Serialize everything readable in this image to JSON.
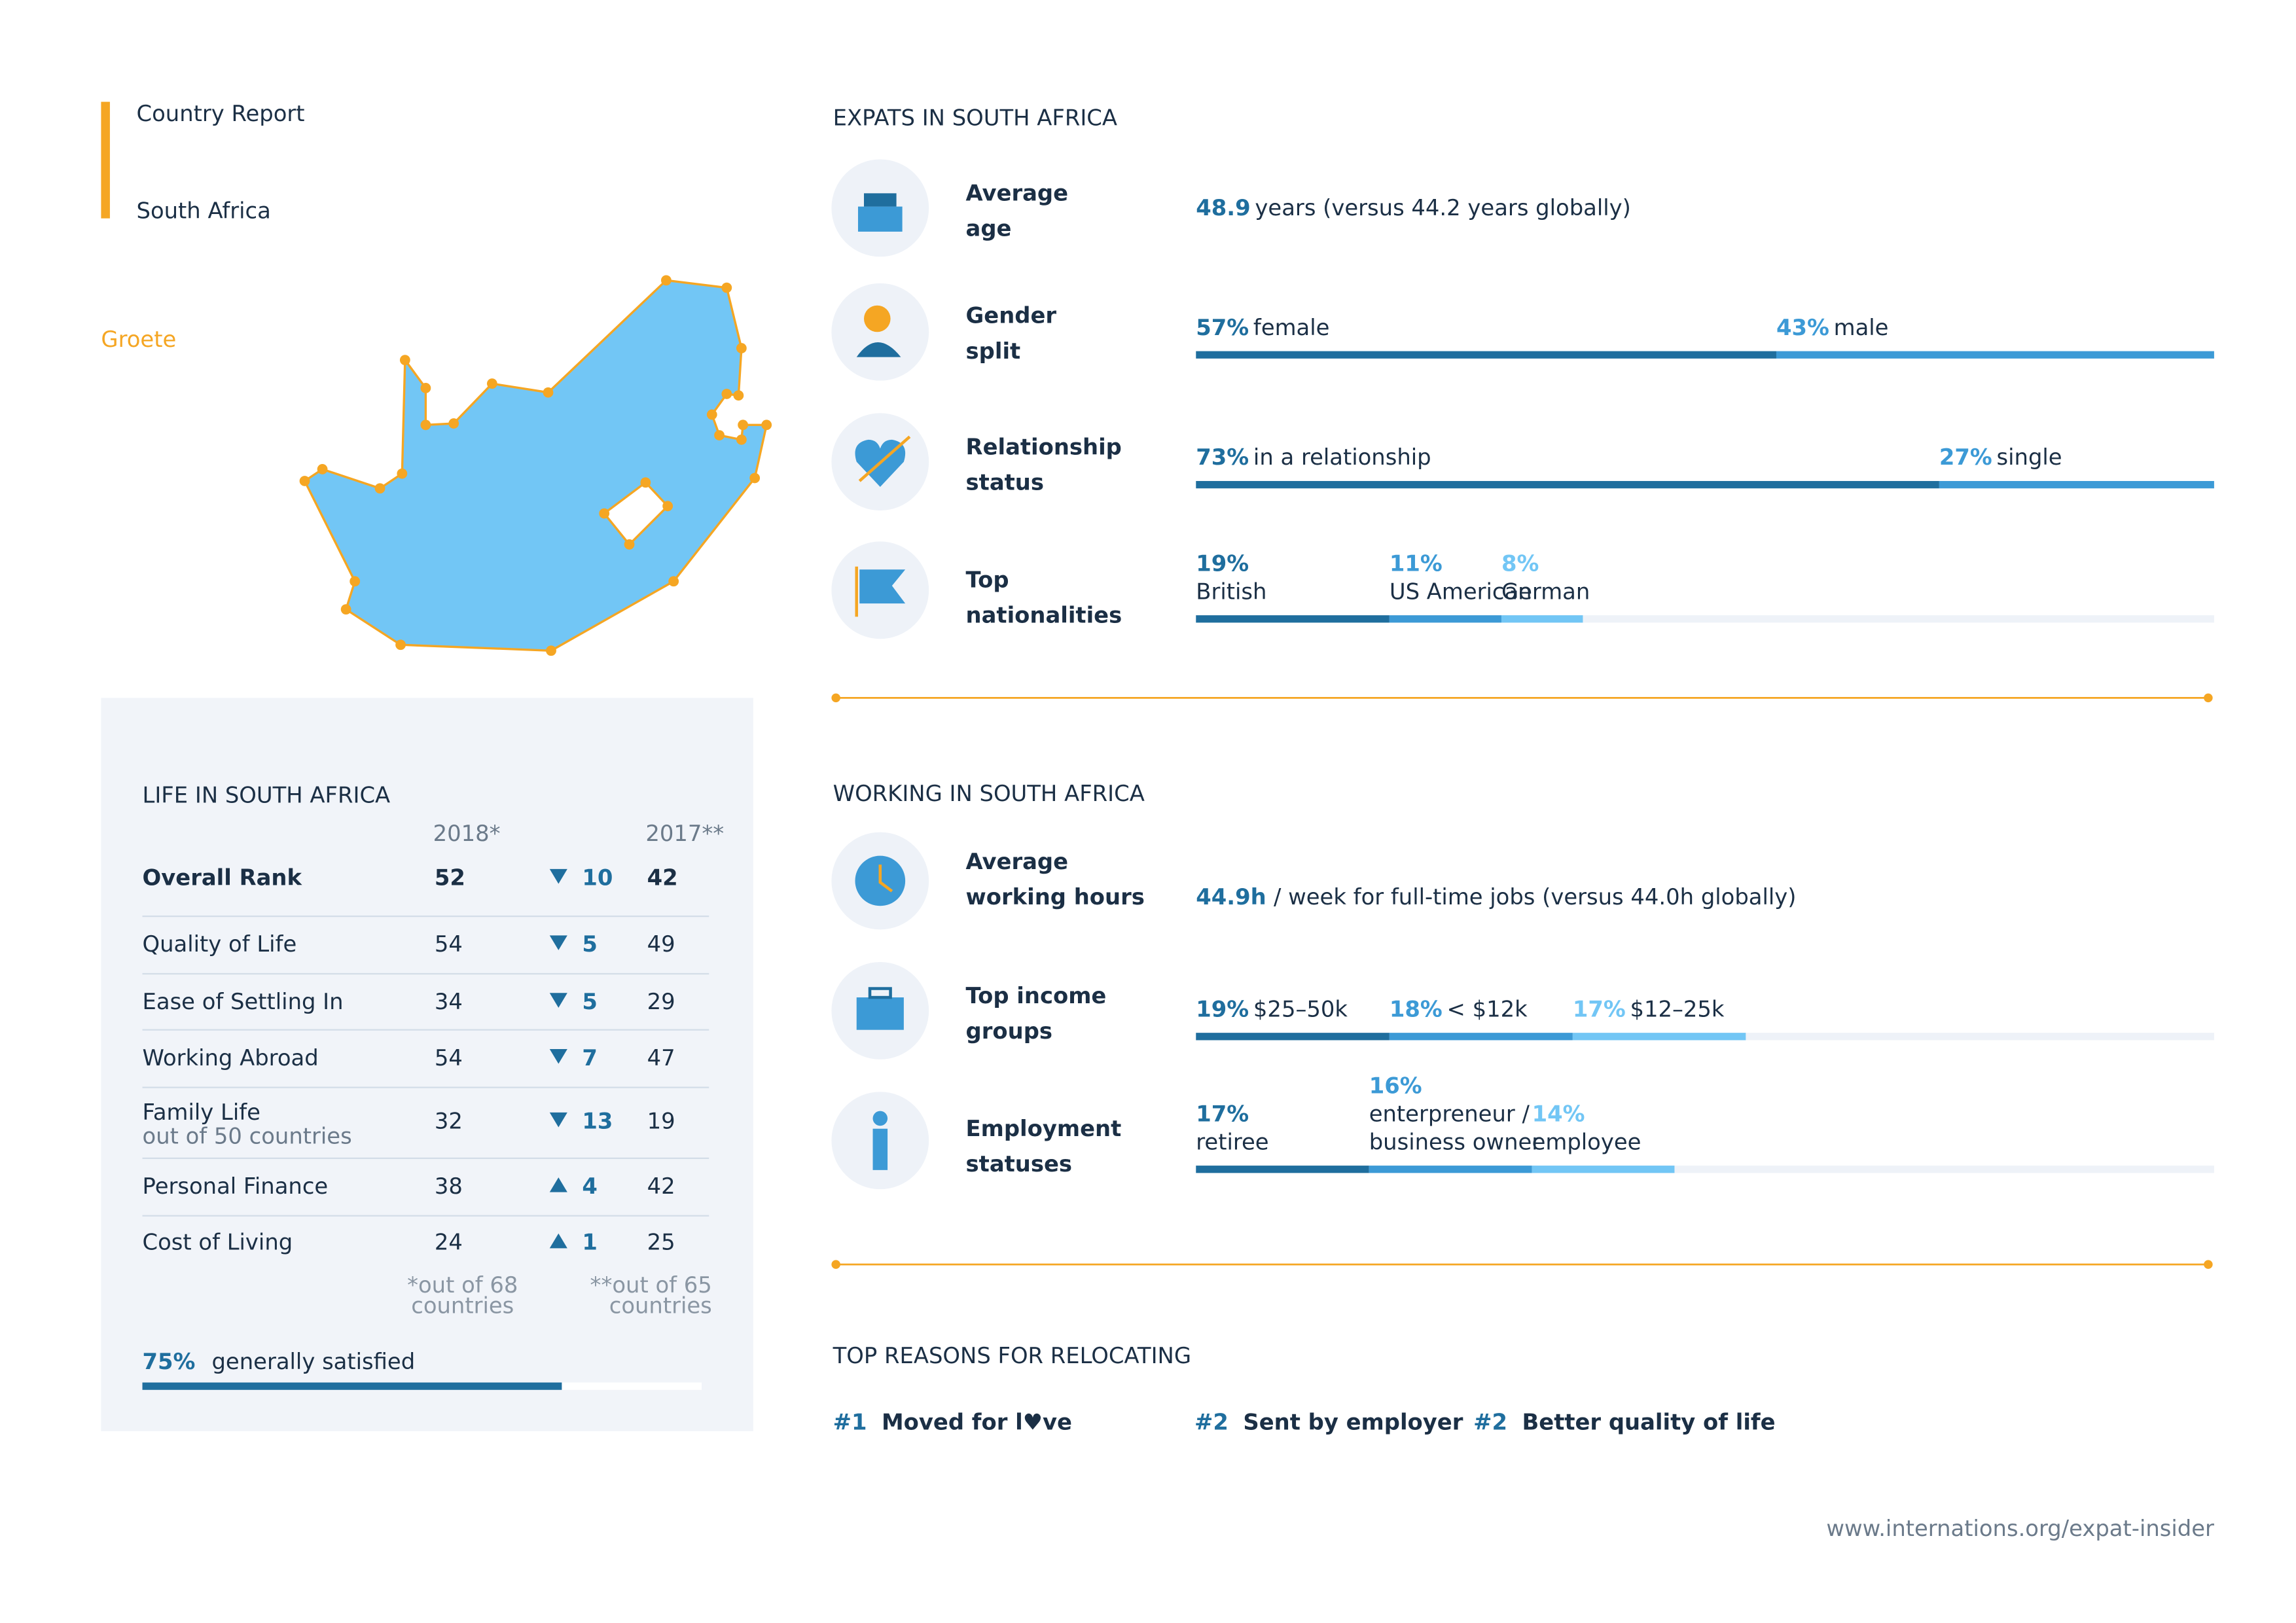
{
  "header": {
    "kicker": "Country Report",
    "title": "South Africa",
    "city": "Groete"
  },
  "life": {
    "title": "LIFE IN SOUTH AFRICA",
    "col_2018": "2018*",
    "col_2017": "2017**",
    "rows": [
      {
        "label": "Overall Rank",
        "rank_2018": 52,
        "direction": "down",
        "change": 10,
        "rank_2017": 42
      },
      {
        "label": "Quality of Life",
        "rank_2018": 54,
        "direction": "down",
        "change": 5,
        "rank_2017": 49
      },
      {
        "label": "Ease of Settling In",
        "rank_2018": 34,
        "direction": "down",
        "change": 5,
        "rank_2017": 29
      },
      {
        "label": "Working Abroad",
        "rank_2018": 54,
        "direction": "down",
        "change": 7,
        "rank_2017": 47
      },
      {
        "label": "Family Life",
        "note": "out of 50 countries",
        "rank_2018": 32,
        "direction": "down",
        "change": 13,
        "rank_2017": 19
      },
      {
        "label": "Personal Finance",
        "rank_2018": 38,
        "direction": "up",
        "change": 4,
        "rank_2017": 42
      },
      {
        "label": "Cost of Living",
        "rank_2018": 24,
        "direction": "up",
        "change": 1,
        "rank_2017": 25
      }
    ],
    "footnote_2018": [
      "*out of 68",
      "countries"
    ],
    "footnote_2017": [
      "**out of 65",
      "countries"
    ],
    "satisfied": {
      "value": 75,
      "value_label": "75%",
      "text": "generally satisfied"
    }
  },
  "expats": {
    "title": "EXPATS IN SOUTH AFRICA",
    "age": {
      "label": [
        "Average",
        "age"
      ],
      "value": 48.9,
      "text": "years (versus 44.2 years globally)"
    },
    "gender": {
      "label": [
        "Gender",
        "split"
      ],
      "segments": [
        {
          "value": 57,
          "value_label": "57%",
          "name": "female"
        },
        {
          "value": 43,
          "value_label": "43%",
          "name": "male"
        }
      ]
    },
    "relationship": {
      "label": [
        "Relationship",
        "status"
      ],
      "segments": [
        {
          "value": 73,
          "value_label": "73%",
          "name": "in a relationship"
        },
        {
          "value": 27,
          "value_label": "27%",
          "name": "single"
        }
      ]
    },
    "nationalities": {
      "label": [
        "Top",
        "nationalities"
      ],
      "segments": [
        {
          "value": 19,
          "value_label": "19%",
          "name": "British"
        },
        {
          "value": 11,
          "value_label": "11%",
          "name": "US American"
        },
        {
          "value": 8,
          "value_label": "8%",
          "name": "German"
        }
      ]
    }
  },
  "working": {
    "title": "WORKING IN SOUTH AFRICA",
    "hours": {
      "label": [
        "Average",
        "working hours"
      ],
      "value": 44.9,
      "value_label": "44.9h",
      "text": "/ week for full-time jobs (versus 44.0h globally)"
    },
    "income": {
      "label": [
        "Top income",
        "groups"
      ],
      "segments": [
        {
          "value": 19,
          "value_label": "19%",
          "name": "$25–50k"
        },
        {
          "value": 18,
          "value_label": "18%",
          "name": "< $12k"
        },
        {
          "value": 17,
          "value_label": "17%",
          "name": "$12–25k"
        }
      ]
    },
    "employment": {
      "label": [
        "Employment",
        "statuses"
      ],
      "segments": [
        {
          "value": 17,
          "value_label": "17%",
          "name": [
            "retiree"
          ]
        },
        {
          "value": 16,
          "value_label": "16%",
          "name": [
            "enterpreneur /",
            "business owner"
          ]
        },
        {
          "value": 14,
          "value_label": "14%",
          "name": [
            "employee"
          ]
        }
      ]
    }
  },
  "reasons": {
    "title": "TOP REASONS FOR RELOCATING",
    "items": [
      {
        "rank": "#1",
        "text": "Moved for l♥ve"
      },
      {
        "rank": "#2",
        "text": "Sent by employer"
      },
      {
        "rank": "#2",
        "text": "Better quality of life"
      }
    ]
  },
  "footer": {
    "url": "www.internations.org/expat-insider"
  }
}
